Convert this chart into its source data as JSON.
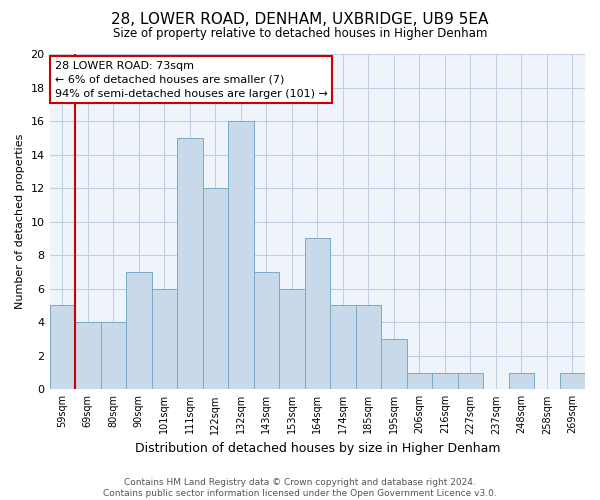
{
  "title": "28, LOWER ROAD, DENHAM, UXBRIDGE, UB9 5EA",
  "subtitle": "Size of property relative to detached houses in Higher Denham",
  "xlabel": "Distribution of detached houses by size in Higher Denham",
  "ylabel": "Number of detached properties",
  "bar_labels": [
    "59sqm",
    "69sqm",
    "80sqm",
    "90sqm",
    "101sqm",
    "111sqm",
    "122sqm",
    "132sqm",
    "143sqm",
    "153sqm",
    "164sqm",
    "174sqm",
    "185sqm",
    "195sqm",
    "206sqm",
    "216sqm",
    "227sqm",
    "237sqm",
    "248sqm",
    "258sqm",
    "269sqm"
  ],
  "bar_values": [
    5,
    4,
    4,
    7,
    6,
    15,
    12,
    16,
    7,
    6,
    9,
    5,
    5,
    3,
    1,
    1,
    1,
    0,
    1,
    0,
    1
  ],
  "bar_color": "#c8daea",
  "bar_edge_color": "#7aaac8",
  "vline_color": "#cc0000",
  "ylim": [
    0,
    20
  ],
  "yticks": [
    0,
    2,
    4,
    6,
    8,
    10,
    12,
    14,
    16,
    18,
    20
  ],
  "annotation_title": "28 LOWER ROAD: 73sqm",
  "annotation_line1": "← 6% of detached houses are smaller (7)",
  "annotation_line2": "94% of semi-detached houses are larger (101) →",
  "annotation_box_color": "#ffffff",
  "annotation_box_edge": "#cc0000",
  "footer_line1": "Contains HM Land Registry data © Crown copyright and database right 2024.",
  "footer_line2": "Contains public sector information licensed under the Open Government Licence v3.0.",
  "background_color": "#ffffff",
  "plot_bg_color": "#eef4fa",
  "grid_color": "#c0d0e0"
}
